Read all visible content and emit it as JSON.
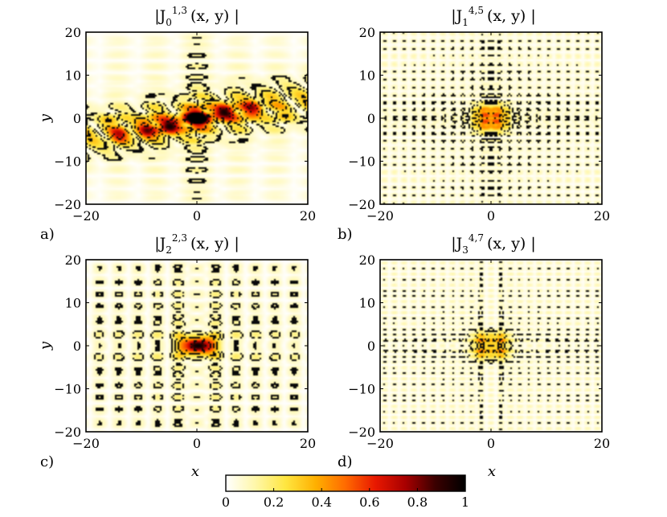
{
  "chart_data": [
    {
      "type": "heatmap",
      "panel_label": "a)",
      "title": {
        "pre": "|J",
        "sub": "0",
        "sup": "1,3",
        "post": "(x, y) |"
      },
      "xlabel": "",
      "ylabel": "y",
      "xlim": [
        -20,
        20
      ],
      "ylim": [
        -20,
        20
      ],
      "xticks": [
        "-20",
        "0",
        "20"
      ],
      "yticks": [
        "20",
        "10",
        "0",
        "-10",
        "-20"
      ],
      "pattern": {
        "type": "bessel",
        "m": 0,
        "a": 1,
        "b": 3,
        "tilt": 0.22,
        "band": 7,
        "lobes": 9,
        "hot": [
          [
            0,
            0,
            1.0
          ],
          [
            -5,
            -2,
            0.75
          ],
          [
            5,
            1.5,
            0.72
          ],
          [
            -9,
            -3,
            0.5
          ],
          [
            10,
            2.5,
            0.5
          ],
          [
            -14,
            -4,
            0.42
          ]
        ]
      }
    },
    {
      "type": "heatmap",
      "panel_label": "b)",
      "title": {
        "pre": "|J",
        "sub": "1",
        "sup": "4,5",
        "post": "(x, y) |"
      },
      "xlabel": "",
      "ylabel": "",
      "xlim": [
        -20,
        20
      ],
      "ylim": [
        -20,
        20
      ],
      "xticks": [
        "-20",
        "0",
        "20"
      ],
      "yticks": [
        "20",
        "10",
        "0",
        "-10",
        "-20"
      ],
      "pattern": {
        "type": "bessel",
        "m": 1,
        "a": 4,
        "b": 5,
        "tilt": 0,
        "band": 0,
        "lobes": 0,
        "hot": [
          [
            -1.5,
            1.5,
            0.3
          ],
          [
            1.5,
            1.5,
            0.3
          ],
          [
            -1.5,
            -1.5,
            0.3
          ],
          [
            1.5,
            -1.5,
            0.3
          ]
        ]
      }
    },
    {
      "type": "heatmap",
      "panel_label": "c)",
      "title": {
        "pre": "|J",
        "sub": "2",
        "sup": "2,3",
        "post": "(x, y) |"
      },
      "xlabel": "x",
      "ylabel": "y",
      "xlim": [
        -20,
        20
      ],
      "ylim": [
        -20,
        20
      ],
      "xticks": [
        "-20",
        "0",
        "20"
      ],
      "yticks": [
        "20",
        "10",
        "0",
        "-10",
        "-20"
      ],
      "pattern": {
        "type": "bessel",
        "m": 2,
        "a": 2,
        "b": 3,
        "tilt": 0,
        "band": 0,
        "lobes": 0,
        "hot": [
          [
            0,
            0,
            0.7
          ],
          [
            2,
            0,
            0.55
          ],
          [
            -2,
            0,
            0.4
          ]
        ]
      }
    },
    {
      "type": "heatmap",
      "panel_label": "d)",
      "title": {
        "pre": "|J",
        "sub": "3",
        "sup": "4,7",
        "post": "(x, y) |"
      },
      "xlabel": "x",
      "ylabel": "",
      "xlim": [
        -20,
        20
      ],
      "ylim": [
        -20,
        20
      ],
      "xticks": [
        "-20",
        "0",
        "20"
      ],
      "yticks": [
        "20",
        "10",
        "0",
        "-10",
        "-20"
      ],
      "pattern": {
        "type": "bessel",
        "m": 3,
        "a": 4,
        "b": 7,
        "tilt": 0,
        "band": 0,
        "lobes": 0,
        "hot": [
          [
            -1.5,
            1.5,
            0.28
          ],
          [
            1.5,
            1.5,
            0.28
          ],
          [
            -1.5,
            -1.5,
            0.28
          ],
          [
            1.5,
            -1.5,
            0.28
          ]
        ]
      }
    }
  ],
  "colorbar": {
    "range": [
      0,
      1
    ],
    "ticks": [
      "0",
      "0.2",
      "0.4",
      "0.6",
      "0.8",
      "1"
    ],
    "colormap": [
      "#ffffff",
      "#fff7a8",
      "#ffe640",
      "#ffb000",
      "#ff6a00",
      "#e81800",
      "#a80000",
      "#3a0000",
      "#000000"
    ]
  }
}
